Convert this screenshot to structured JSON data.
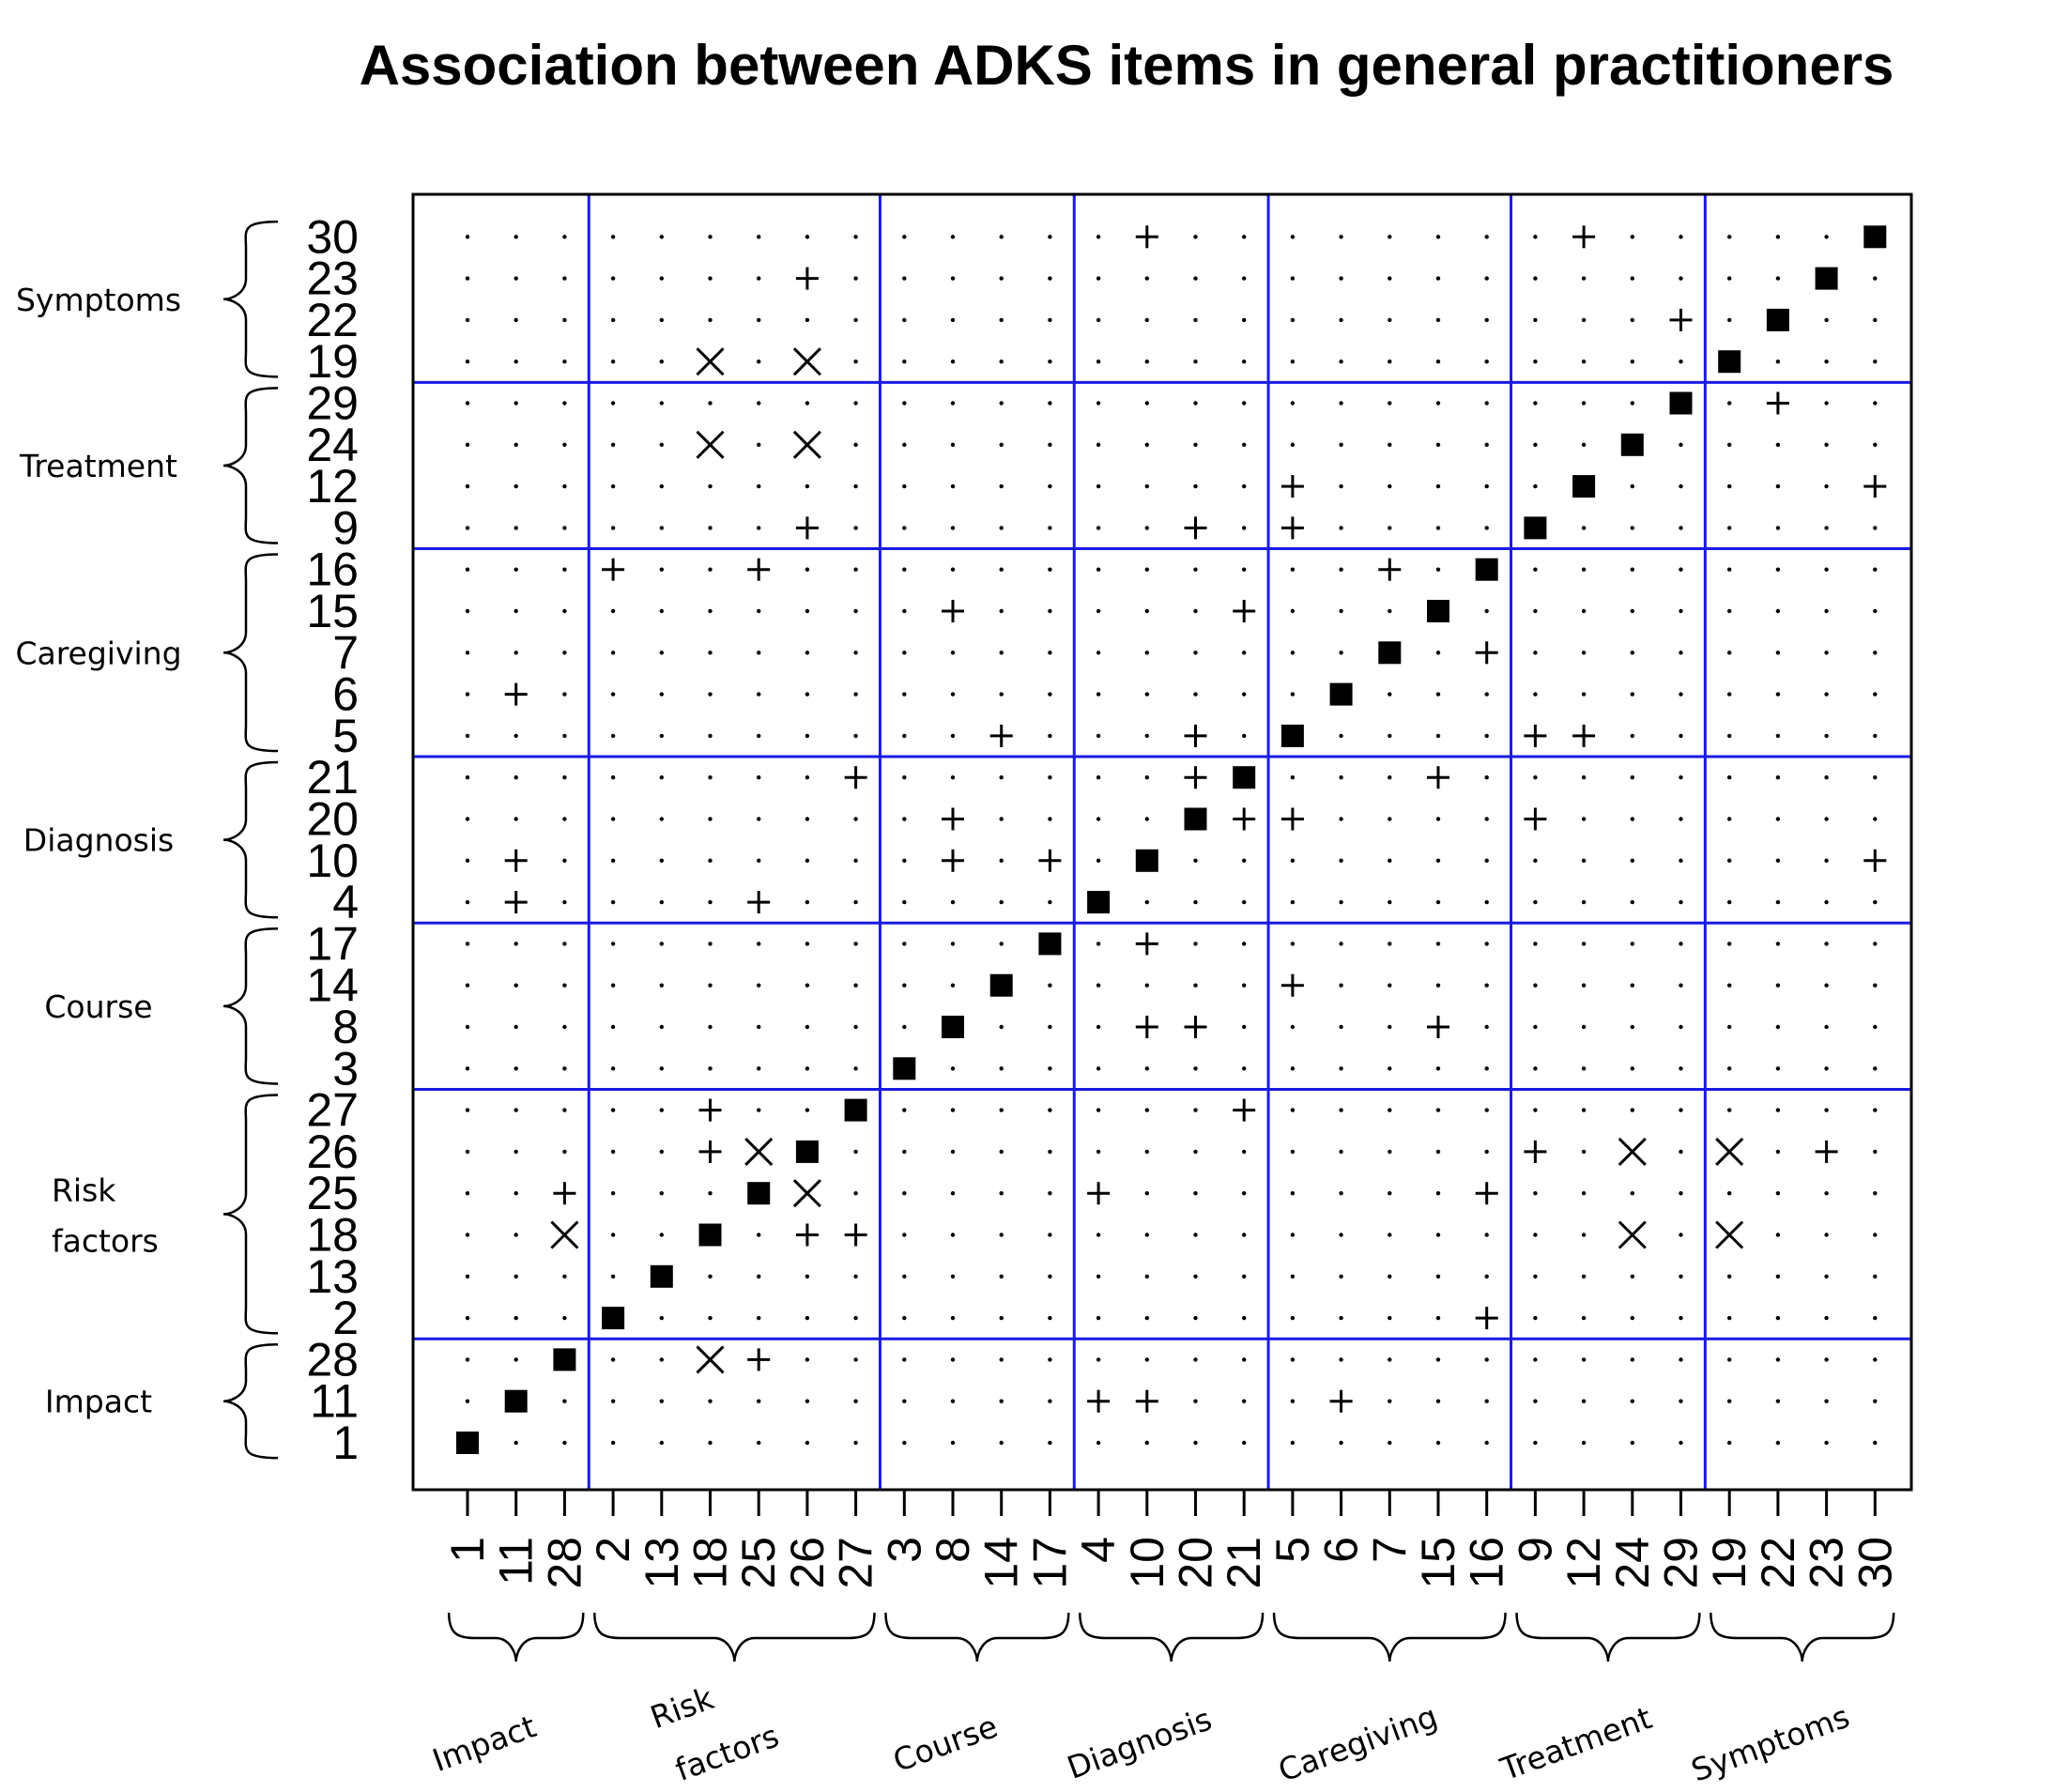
{
  "chart_data": {
    "type": "heatmap",
    "title": "Association between ADKS items in general practitioners",
    "xlabel": "",
    "ylabel": "",
    "item_order": [
      "1",
      "11",
      "28",
      "2",
      "13",
      "18",
      "25",
      "26",
      "27",
      "3",
      "8",
      "14",
      "17",
      "4",
      "10",
      "20",
      "21",
      "5",
      "6",
      "7",
      "15",
      "16",
      "9",
      "12",
      "24",
      "29",
      "19",
      "22",
      "23",
      "30"
    ],
    "groups": [
      {
        "name": "Impact",
        "items": [
          "1",
          "11",
          "28"
        ]
      },
      {
        "name": "Risk factors",
        "items": [
          "2",
          "13",
          "18",
          "25",
          "26",
          "27"
        ]
      },
      {
        "name": "Course",
        "items": [
          "3",
          "8",
          "14",
          "17"
        ]
      },
      {
        "name": "Diagnosis",
        "items": [
          "4",
          "10",
          "20",
          "21"
        ]
      },
      {
        "name": "Caregiving",
        "items": [
          "5",
          "6",
          "7",
          "15",
          "16"
        ]
      },
      {
        "name": "Treatment",
        "items": [
          "9",
          "12",
          "24",
          "29"
        ]
      },
      {
        "name": "Symptoms",
        "items": [
          "19",
          "22",
          "23",
          "30"
        ]
      }
    ],
    "marker_legend": {
      "square": "diagonal",
      "plus": "positive association",
      "cross": "negative association",
      "dot": "no association"
    },
    "associations": [
      {
        "row": "30",
        "col": "10",
        "mark": "plus"
      },
      {
        "row": "30",
        "col": "12",
        "mark": "plus"
      },
      {
        "row": "23",
        "col": "26",
        "mark": "plus"
      },
      {
        "row": "22",
        "col": "29",
        "mark": "plus"
      },
      {
        "row": "19",
        "col": "18",
        "mark": "cross"
      },
      {
        "row": "19",
        "col": "26",
        "mark": "cross"
      },
      {
        "row": "29",
        "col": "22",
        "mark": "plus"
      },
      {
        "row": "24",
        "col": "18",
        "mark": "cross"
      },
      {
        "row": "24",
        "col": "26",
        "mark": "cross"
      },
      {
        "row": "12",
        "col": "5",
        "mark": "plus"
      },
      {
        "row": "12",
        "col": "30",
        "mark": "plus"
      },
      {
        "row": "9",
        "col": "26",
        "mark": "plus"
      },
      {
        "row": "9",
        "col": "20",
        "mark": "plus"
      },
      {
        "row": "9",
        "col": "5",
        "mark": "plus"
      },
      {
        "row": "16",
        "col": "2",
        "mark": "plus"
      },
      {
        "row": "16",
        "col": "25",
        "mark": "plus"
      },
      {
        "row": "16",
        "col": "7",
        "mark": "plus"
      },
      {
        "row": "15",
        "col": "8",
        "mark": "plus"
      },
      {
        "row": "15",
        "col": "21",
        "mark": "plus"
      },
      {
        "row": "7",
        "col": "16",
        "mark": "plus"
      },
      {
        "row": "6",
        "col": "11",
        "mark": "plus"
      },
      {
        "row": "5",
        "col": "14",
        "mark": "plus"
      },
      {
        "row": "5",
        "col": "20",
        "mark": "plus"
      },
      {
        "row": "5",
        "col": "9",
        "mark": "plus"
      },
      {
        "row": "5",
        "col": "12",
        "mark": "plus"
      },
      {
        "row": "21",
        "col": "27",
        "mark": "plus"
      },
      {
        "row": "21",
        "col": "20",
        "mark": "plus"
      },
      {
        "row": "21",
        "col": "15",
        "mark": "plus"
      },
      {
        "row": "20",
        "col": "8",
        "mark": "plus"
      },
      {
        "row": "20",
        "col": "21",
        "mark": "plus"
      },
      {
        "row": "20",
        "col": "5",
        "mark": "plus"
      },
      {
        "row": "20",
        "col": "9",
        "mark": "plus"
      },
      {
        "row": "10",
        "col": "11",
        "mark": "plus"
      },
      {
        "row": "10",
        "col": "8",
        "mark": "plus"
      },
      {
        "row": "10",
        "col": "17",
        "mark": "plus"
      },
      {
        "row": "10",
        "col": "30",
        "mark": "plus"
      },
      {
        "row": "4",
        "col": "11",
        "mark": "plus"
      },
      {
        "row": "4",
        "col": "25",
        "mark": "plus"
      },
      {
        "row": "17",
        "col": "10",
        "mark": "plus"
      },
      {
        "row": "14",
        "col": "5",
        "mark": "plus"
      },
      {
        "row": "8",
        "col": "10",
        "mark": "plus"
      },
      {
        "row": "8",
        "col": "20",
        "mark": "plus"
      },
      {
        "row": "8",
        "col": "15",
        "mark": "plus"
      },
      {
        "row": "27",
        "col": "18",
        "mark": "plus"
      },
      {
        "row": "27",
        "col": "21",
        "mark": "plus"
      },
      {
        "row": "26",
        "col": "18",
        "mark": "plus"
      },
      {
        "row": "26",
        "col": "25",
        "mark": "cross"
      },
      {
        "row": "26",
        "col": "9",
        "mark": "plus"
      },
      {
        "row": "26",
        "col": "24",
        "mark": "cross"
      },
      {
        "row": "26",
        "col": "19",
        "mark": "cross"
      },
      {
        "row": "26",
        "col": "23",
        "mark": "plus"
      },
      {
        "row": "25",
        "col": "28",
        "mark": "plus"
      },
      {
        "row": "25",
        "col": "26",
        "mark": "cross"
      },
      {
        "row": "25",
        "col": "4",
        "mark": "plus"
      },
      {
        "row": "25",
        "col": "16",
        "mark": "plus"
      },
      {
        "row": "18",
        "col": "28",
        "mark": "cross"
      },
      {
        "row": "18",
        "col": "26",
        "mark": "plus"
      },
      {
        "row": "18",
        "col": "27",
        "mark": "plus"
      },
      {
        "row": "18",
        "col": "24",
        "mark": "cross"
      },
      {
        "row": "18",
        "col": "19",
        "mark": "cross"
      },
      {
        "row": "2",
        "col": "16",
        "mark": "plus"
      },
      {
        "row": "28",
        "col": "18",
        "mark": "cross"
      },
      {
        "row": "28",
        "col": "25",
        "mark": "plus"
      },
      {
        "row": "11",
        "col": "4",
        "mark": "plus"
      },
      {
        "row": "11",
        "col": "10",
        "mark": "plus"
      },
      {
        "row": "11",
        "col": "6",
        "mark": "plus"
      }
    ],
    "grid": false,
    "colors": {
      "group_separator": "#1a1ae6",
      "marker": "#000000"
    }
  }
}
